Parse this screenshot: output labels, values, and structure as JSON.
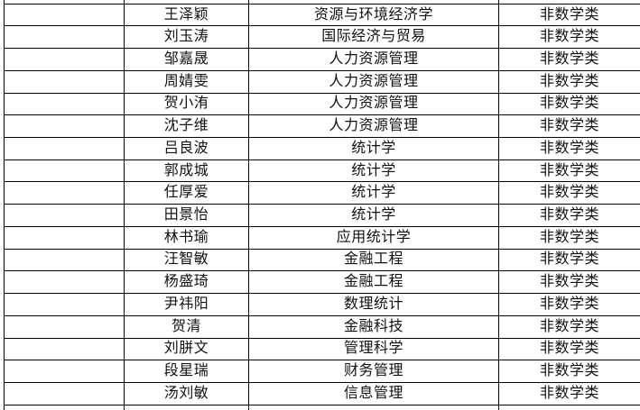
{
  "table": {
    "columns": [
      {
        "key": "rowheader",
        "label": ""
      },
      {
        "key": "name",
        "label": ""
      },
      {
        "key": "major",
        "label": ""
      },
      {
        "key": "category",
        "label": ""
      }
    ],
    "rows": [
      {
        "name": "王泽颖",
        "major": "资源与环境经济学",
        "category": "非数学类"
      },
      {
        "name": "刘玉涛",
        "major": "国际经济与贸易",
        "category": "非数学类"
      },
      {
        "name": "邹嘉晟",
        "major": "人力资源管理",
        "category": "非数学类"
      },
      {
        "name": "周婧雯",
        "major": "人力资源管理",
        "category": "非数学类"
      },
      {
        "name": "贺小洧",
        "major": "人力资源管理",
        "category": "非数学类"
      },
      {
        "name": "沈子维",
        "major": "人力资源管理",
        "category": "非数学类"
      },
      {
        "name": "吕良波",
        "major": "统计学",
        "category": "非数学类"
      },
      {
        "name": "郭成城",
        "major": "统计学",
        "category": "非数学类"
      },
      {
        "name": "任厚爱",
        "major": "统计学",
        "category": "非数学类"
      },
      {
        "name": "田景怡",
        "major": "统计学",
        "category": "非数学类"
      },
      {
        "name": "林书瑜",
        "major": "应用统计学",
        "category": "非数学类"
      },
      {
        "name": "汪智敏",
        "major": "金融工程",
        "category": "非数学类"
      },
      {
        "name": "杨盛琦",
        "major": "金融工程",
        "category": "非数学类"
      },
      {
        "name": "尹祎阳",
        "major": "数理统计",
        "category": "非数学类"
      },
      {
        "name": "贺清",
        "major": "金融科技",
        "category": "非数学类"
      },
      {
        "name": "刘胼文",
        "major": "管理科学",
        "category": "非数学类"
      },
      {
        "name": "段星瑞",
        "major": "财务管理",
        "category": "非数学类"
      },
      {
        "name": "汤刘敏",
        "major": "信息管理",
        "category": "非数学类"
      }
    ]
  },
  "colors": {
    "border": "#000000",
    "text": "#111111",
    "background": "#ffffff"
  }
}
